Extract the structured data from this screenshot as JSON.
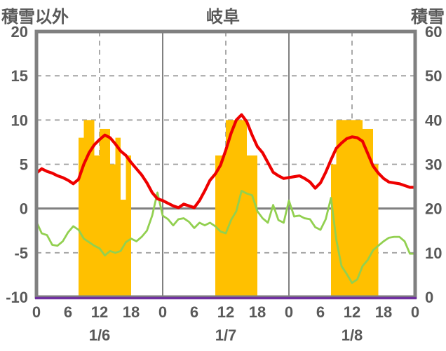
{
  "chart_data": {
    "type": "combo-line-bar",
    "title": "岐阜",
    "left_axis": {
      "label": "積雪以外",
      "range": [
        -10,
        20
      ],
      "ticks": [
        20,
        15,
        10,
        5,
        0,
        -5,
        -10
      ]
    },
    "right_axis": {
      "label": "積雪",
      "range": [
        0,
        60
      ],
      "ticks": [
        60,
        50,
        40,
        30,
        20,
        10,
        0
      ]
    },
    "x_axis": {
      "days": [
        "1/6",
        "1/7",
        "1/8"
      ],
      "hour_ticks": [
        0,
        6,
        12,
        18
      ],
      "hours_per_day": 24,
      "trailing_tick_label": "0"
    },
    "grid": {
      "h_dashed_at": [
        15,
        10,
        5,
        -5
      ],
      "h_solid_at": [
        0
      ],
      "v_dashed_at_hours": [
        12,
        36,
        60
      ],
      "v_solid_at_hours": [
        24,
        48
      ]
    },
    "colors": {
      "red_line": "#ee0000",
      "green_line": "#92d050",
      "orange_bars": "#ffc000",
      "purple_line": "#7030a0",
      "border": "#808080",
      "grid_dashed": "#a0a0a0",
      "text": "#595959"
    },
    "series": [
      {
        "name": "orange-bars",
        "type": "bar",
        "axis": "left",
        "values": [
          0,
          0,
          0,
          0,
          0,
          0,
          0,
          0,
          8,
          10,
          10,
          6,
          9,
          9,
          5,
          8,
          1,
          6,
          0,
          0,
          0,
          0,
          0,
          0,
          0,
          0,
          0,
          0,
          0,
          0,
          0,
          0,
          0,
          0,
          6,
          6,
          10,
          10,
          10,
          10,
          6,
          6,
          0,
          0,
          0,
          0,
          0,
          0,
          0,
          0,
          0,
          0,
          0,
          0,
          0,
          0,
          5,
          10,
          10,
          10,
          10,
          10,
          9,
          9,
          5,
          0,
          0,
          0,
          0,
          0,
          0,
          0
        ]
      },
      {
        "name": "green-line",
        "type": "line",
        "axis": "left",
        "values": [
          -1.5,
          -2.8,
          -3.0,
          -4.1,
          -4.2,
          -3.7,
          -2.7,
          -2.0,
          -2.4,
          -3.4,
          -3.8,
          -4.2,
          -4.5,
          -5.3,
          -4.8,
          -5.0,
          -4.8,
          -3.8,
          -3.4,
          -3.7,
          -3.2,
          -2.5,
          -0.8,
          1.8,
          -0.8,
          -1.2,
          -1.9,
          -1.2,
          -1.1,
          -1.5,
          -2.2,
          -1.6,
          -1.9,
          -1.6,
          -2.0,
          -2.6,
          -2.8,
          -1.3,
          -0.3,
          2.0,
          1.7,
          1.5,
          -0.3,
          -1.1,
          -1.6,
          0.4,
          -1.3,
          -1.6,
          0.9,
          -0.9,
          -0.8,
          -1.1,
          -1.2,
          -2.1,
          -2.4,
          -1.2,
          1.2,
          -3.5,
          -6.5,
          -7.4,
          -8.4,
          -8.0,
          -6.5,
          -5.8,
          -4.7,
          -4.2,
          -3.7,
          -3.3,
          -3.2,
          -3.2,
          -3.7,
          -5.1
        ]
      },
      {
        "name": "red-line",
        "type": "line",
        "axis": "left",
        "values": [
          4.0,
          4.5,
          4.2,
          4.0,
          3.7,
          3.5,
          3.2,
          2.8,
          3.3,
          5.0,
          6.3,
          7.2,
          7.8,
          8.3,
          8.0,
          7.3,
          6.5,
          6.0,
          5.2,
          4.5,
          3.8,
          2.9,
          1.8,
          1.1,
          0.9,
          0.6,
          0.3,
          0.1,
          0.5,
          0.3,
          0.1,
          0.9,
          2.0,
          3.2,
          3.9,
          4.9,
          6.6,
          8.5,
          10.0,
          10.6,
          9.8,
          8.3,
          7.0,
          6.3,
          5.2,
          4.1,
          3.7,
          3.4,
          3.5,
          3.6,
          3.7,
          3.4,
          3.0,
          2.3,
          2.9,
          4.1,
          5.5,
          6.8,
          7.4,
          7.9,
          8.1,
          8.0,
          7.6,
          6.2,
          4.8,
          4.0,
          3.4,
          3.0,
          2.9,
          2.8,
          2.6,
          2.4
        ]
      },
      {
        "name": "purple-line",
        "type": "line",
        "axis": "right",
        "constant": 0
      }
    ]
  }
}
